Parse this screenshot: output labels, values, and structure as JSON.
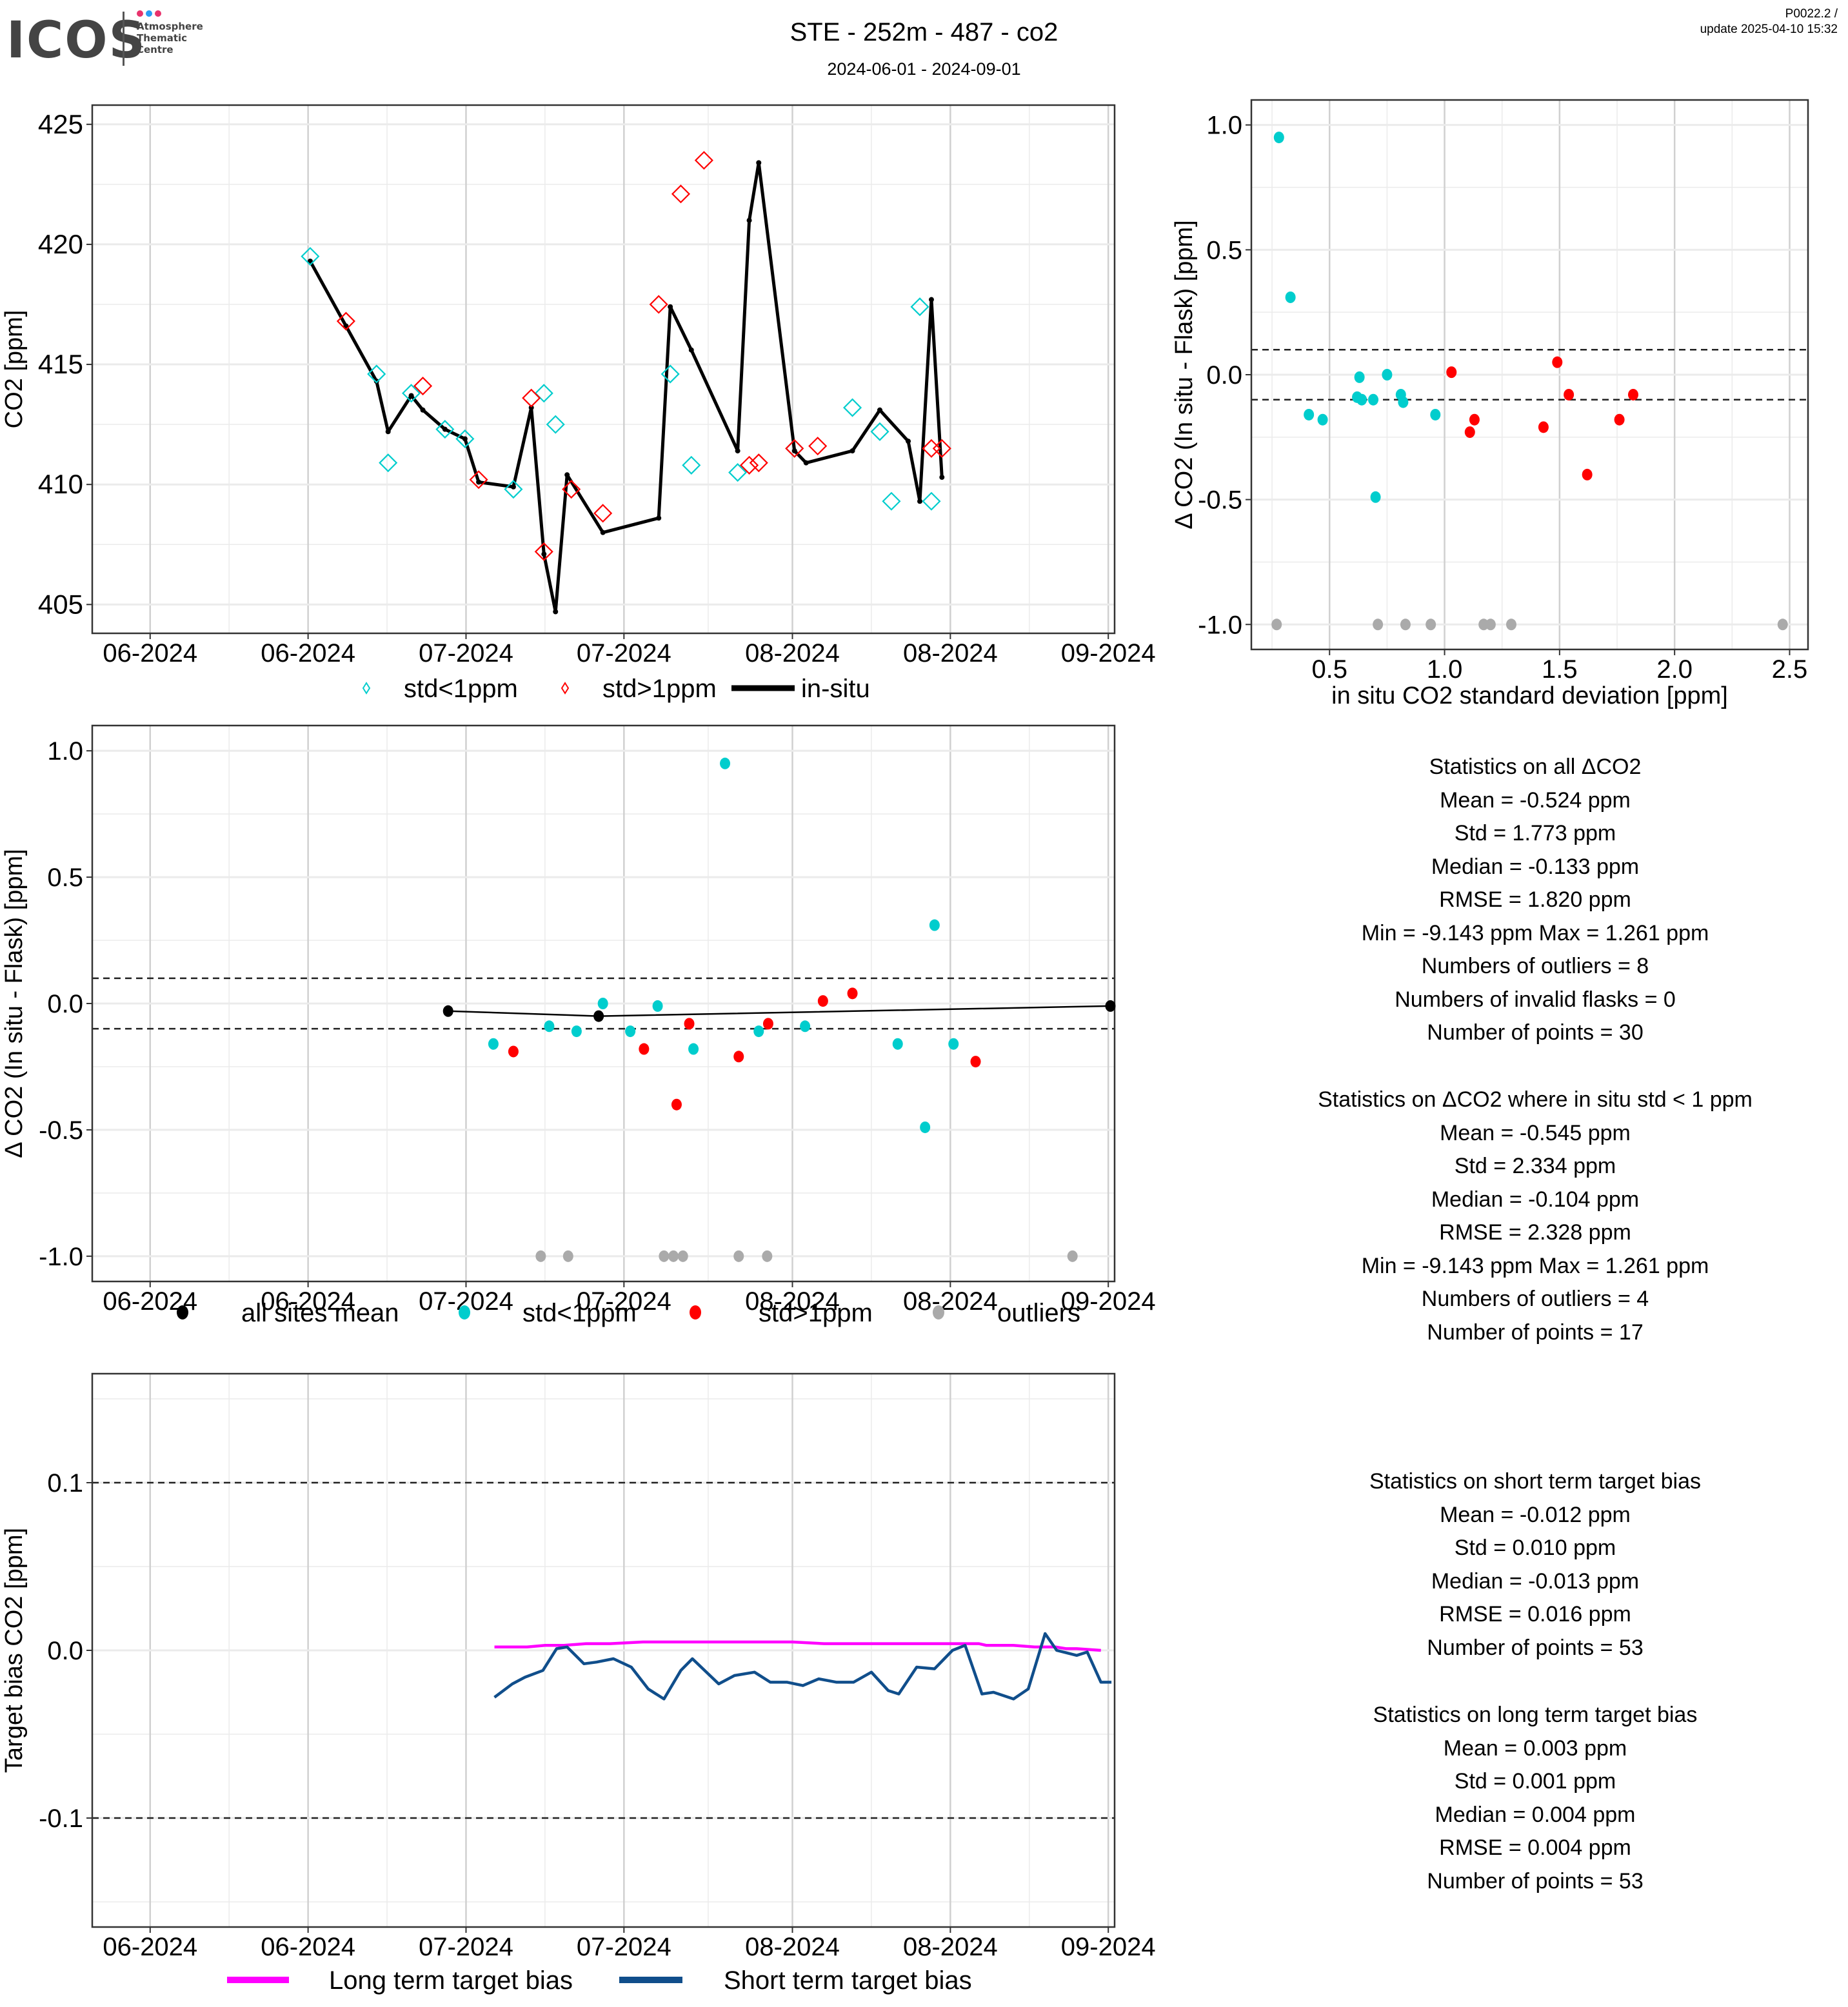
{
  "header": {
    "logo": "ICOS",
    "logo_sub": [
      "Atmosphere",
      "Thematic",
      "Centre"
    ],
    "logo_dot_colors": [
      "#e8336d",
      "#2a9df4",
      "#e8336d"
    ],
    "title": "STE - 252m - 487 - co2",
    "date_range": "2024-06-01 - 2024-09-01",
    "version": "P0022.2 /",
    "update": "update  2025-04-10 15:32"
  },
  "colors": {
    "std_lt_1": "#00CDCD",
    "std_gt_1": "#FF0000",
    "outlier": "#AAAAAA",
    "mean": "#000000",
    "long_term": "#FF00FF",
    "short_term": "#104E8B"
  },
  "x_ticks": {
    "days_since_2024_06_01": [
      1,
      16,
      31,
      46,
      62,
      77,
      92
    ],
    "labels": [
      "06-2024",
      "06-2024",
      "07-2024",
      "07-2024",
      "08-2024",
      "08-2024",
      "09-2024"
    ]
  },
  "chart_data": [
    {
      "id": "co2-timeseries",
      "type": "line",
      "xlabel": "",
      "ylabel": "CO2 [ppm]",
      "x_unit": "days since 2024-06-01",
      "xlim": [
        -4.5,
        92.6
      ],
      "ylim": [
        403.8,
        425.8
      ],
      "yticks": [
        405,
        410,
        415,
        420,
        425
      ],
      "grid": true,
      "legend_position": "bottom",
      "legend": [
        {
          "label": "std<1ppm",
          "symbol": "diamond-open",
          "color": "#00CDCD"
        },
        {
          "label": "std>1ppm",
          "symbol": "diamond-open",
          "color": "#FF0000"
        },
        {
          "label": "in-situ",
          "symbol": "line",
          "color": "#000000"
        }
      ],
      "insitu": {
        "x": [
          16.2,
          19.6,
          22.5,
          23.6,
          25.8,
          26.9,
          29.0,
          30.9,
          32.2,
          35.5,
          37.2,
          38.4,
          39.5,
          40.6,
          44.0,
          49.3,
          50.4,
          52.4,
          56.8,
          57.9,
          58.8,
          62.2,
          63.3,
          67.7,
          70.3,
          73.0,
          74.1,
          75.2,
          76.2
        ],
        "y": [
          419.3,
          416.6,
          414.3,
          412.2,
          413.7,
          413.1,
          412.3,
          411.9,
          410.1,
          409.9,
          413.2,
          407.1,
          404.7,
          410.4,
          408.0,
          408.6,
          417.4,
          415.6,
          411.4,
          421.0,
          423.4,
          411.4,
          410.9,
          411.4,
          413.1,
          411.8,
          409.3,
          417.7,
          410.3
        ]
      },
      "flask_std_lt_1": {
        "x": [
          16.2,
          22.5,
          23.6,
          25.8,
          29.0,
          30.9,
          35.5,
          38.4,
          39.5,
          50.4,
          52.4,
          56.8,
          62.2,
          67.7,
          70.3,
          71.4,
          74.1,
          75.2
        ],
        "y": [
          419.5,
          414.6,
          410.9,
          413.8,
          412.3,
          411.9,
          409.8,
          413.8,
          412.5,
          414.6,
          410.8,
          410.5,
          411.5,
          413.2,
          412.2,
          409.3,
          417.4,
          409.3
        ]
      },
      "flask_std_gt_1": {
        "x": [
          19.6,
          26.9,
          32.2,
          37.2,
          38.4,
          41.0,
          44.0,
          49.3,
          51.4,
          53.6,
          57.9,
          58.8,
          62.2,
          64.4,
          75.2,
          76.2
        ],
        "y": [
          416.8,
          414.1,
          410.2,
          413.6,
          407.2,
          409.8,
          408.8,
          417.5,
          422.1,
          423.5,
          410.8,
          410.9,
          411.5,
          411.6,
          411.5,
          411.5
        ]
      }
    },
    {
      "id": "delta-vs-std",
      "type": "scatter",
      "xlabel": "in situ CO2 standard deviation [ppm]",
      "ylabel": "Δ CO2 (In situ - Flask) [ppm]",
      "xlim": [
        0.16,
        2.58
      ],
      "ylim": [
        -1.1,
        1.1
      ],
      "xticks": [
        0.5,
        1.0,
        1.5,
        2.0,
        2.5
      ],
      "yticks": [
        -1.0,
        -0.5,
        0.0,
        0.5,
        1.0
      ],
      "ytick_labels": [
        "-1.0",
        "-0.5",
        "0.0",
        "0.5",
        "1.0"
      ],
      "xtick_labels": [
        "0.5",
        "1.0",
        "1.5",
        "2.0",
        "2.5"
      ],
      "hlines": [
        0.1,
        -0.1
      ],
      "grid": true,
      "series": [
        {
          "name": "std<1ppm",
          "color": "#00CDCD",
          "x": [
            0.28,
            0.33,
            0.41,
            0.47,
            0.62,
            0.63,
            0.64,
            0.69,
            0.7,
            0.75,
            0.81,
            0.82,
            0.96
          ],
          "y": [
            0.95,
            0.31,
            -0.16,
            -0.18,
            -0.09,
            -0.01,
            -0.1,
            -0.1,
            -0.49,
            0.0,
            -0.08,
            -0.11,
            -0.16
          ]
        },
        {
          "name": "std>1ppm",
          "color": "#FF0000",
          "x": [
            1.03,
            1.11,
            1.13,
            1.43,
            1.49,
            1.54,
            1.62,
            1.76,
            1.82
          ],
          "y": [
            0.01,
            -0.23,
            -0.18,
            -0.21,
            0.05,
            -0.08,
            -0.4,
            -0.18,
            -0.08
          ]
        },
        {
          "name": "outliers",
          "color": "#AAAAAA",
          "x": [
            0.27,
            0.71,
            0.83,
            0.94,
            1.17,
            1.2,
            1.29,
            2.47
          ],
          "y": [
            -1.0,
            -1.0,
            -1.0,
            -1.0,
            -1.0,
            -1.0,
            -1.0,
            -1.0
          ]
        }
      ]
    },
    {
      "id": "delta-timeseries",
      "type": "scatter",
      "xlabel": "",
      "ylabel": "Δ CO2 (In situ - Flask) [ppm]",
      "x_unit": "days since 2024-06-01",
      "xlim": [
        -4.5,
        92.6
      ],
      "ylim": [
        -1.1,
        1.1
      ],
      "yticks": [
        -1.0,
        -0.5,
        0.0,
        0.5,
        1.0
      ],
      "ytick_labels": [
        "-1.0",
        "-0.5",
        "0.0",
        "0.5",
        "1.0"
      ],
      "hlines": [
        0.1,
        -0.1
      ],
      "grid": true,
      "legend_position": "bottom",
      "legend": [
        {
          "label": "all sites mean",
          "color": "#000000"
        },
        {
          "label": "std<1ppm",
          "color": "#00CDCD"
        },
        {
          "label": "std>1ppm",
          "color": "#FF0000"
        },
        {
          "label": "outliers",
          "color": "#AAAAAA"
        }
      ],
      "series": [
        {
          "name": "all sites mean",
          "color": "#000000",
          "line": true,
          "x": [
            29.3,
            43.6,
            92.2
          ],
          "y": [
            -0.03,
            -0.05,
            -0.01
          ]
        },
        {
          "name": "std<1ppm",
          "color": "#00CDCD",
          "x": [
            33.6,
            38.9,
            41.5,
            44.0,
            46.6,
            49.2,
            52.6,
            55.6,
            58.8,
            63.2,
            72.0,
            74.6,
            75.5,
            77.3
          ],
          "y": [
            -0.16,
            -0.09,
            -0.11,
            0.0,
            -0.11,
            -0.01,
            -0.18,
            0.95,
            -0.11,
            -0.09,
            -0.16,
            -0.49,
            0.31,
            -0.16
          ]
        },
        {
          "name": "std>1ppm",
          "color": "#FF0000",
          "x": [
            35.5,
            47.9,
            51.0,
            52.2,
            56.9,
            59.7,
            64.9,
            67.7,
            79.4
          ],
          "y": [
            -0.19,
            -0.18,
            -0.4,
            -0.08,
            -0.21,
            -0.08,
            0.01,
            0.04,
            -0.23
          ]
        },
        {
          "name": "outliers",
          "color": "#AAAAAA",
          "x": [
            38.1,
            40.7,
            49.8,
            50.7,
            51.6,
            56.9,
            59.6,
            88.6
          ],
          "y": [
            -1.0,
            -1.0,
            -1.0,
            -1.0,
            -1.0,
            -1.0,
            -1.0,
            -1.0
          ]
        }
      ]
    },
    {
      "id": "target-bias",
      "type": "line",
      "xlabel": "",
      "ylabel": "Target bias CO2 [ppm]",
      "x_unit": "days since 2024-06-01",
      "xlim": [
        -4.5,
        92.6
      ],
      "ylim": [
        -0.165,
        0.165
      ],
      "yticks": [
        -0.1,
        0.0,
        0.1
      ],
      "ytick_labels": [
        "-0.1",
        "0.0",
        "0.1"
      ],
      "hlines": [
        0.1,
        -0.1
      ],
      "grid": true,
      "legend_position": "bottom",
      "legend": [
        {
          "label": "Long term target bias",
          "color": "#FF00FF"
        },
        {
          "label": "Short term target bias",
          "color": "#104E8B"
        }
      ],
      "series": [
        {
          "name": "Long term target bias",
          "color": "#FF00FF",
          "x": [
            33.7,
            35.4,
            36.8,
            38.5,
            40.3,
            42.4,
            44.7,
            47.8,
            52.3,
            57.0,
            62.0,
            65.0,
            70.0,
            71.5,
            73.0,
            74.5,
            76.2,
            77.5,
            78.8,
            79.7,
            80.4,
            83.0,
            85.0,
            87.0,
            88.0,
            89.0,
            91.3
          ],
          "y": [
            0.002,
            0.002,
            0.002,
            0.003,
            0.003,
            0.004,
            0.004,
            0.005,
            0.005,
            0.005,
            0.005,
            0.004,
            0.004,
            0.004,
            0.004,
            0.004,
            0.004,
            0.004,
            0.004,
            0.004,
            0.003,
            0.003,
            0.002,
            0.002,
            0.001,
            0.001,
            0.0
          ]
        },
        {
          "name": "Short term target bias",
          "color": "#104E8B",
          "x": [
            33.7,
            35.4,
            36.6,
            38.3,
            39.6,
            40.6,
            42.2,
            43.4,
            45.0,
            46.7,
            48.3,
            49.8,
            51.4,
            52.5,
            55.0,
            56.5,
            58.4,
            59.9,
            61.5,
            63.0,
            64.5,
            66.2,
            67.8,
            69.5,
            71.1,
            72.1,
            73.8,
            75.5,
            77.2,
            78.4,
            80.0,
            81.1,
            83.0,
            84.4,
            86.0,
            87.1,
            89.0,
            90.0,
            91.3,
            92.3,
            62.5,
            65.4,
            70.4,
            74.6,
            76.8,
            79.1,
            82.3,
            85.1,
            86.7,
            88.2,
            89.6,
            90.6,
            91.8
          ],
          "y": [
            -0.028,
            -0.02,
            -0.016,
            -0.012,
            0.001,
            0.002,
            -0.008,
            -0.007,
            -0.005,
            -0.01,
            -0.023,
            -0.029,
            -0.012,
            -0.005,
            -0.02,
            -0.015,
            -0.013,
            -0.019,
            -0.019,
            -0.021,
            -0.017,
            -0.019,
            -0.019,
            -0.013,
            -0.024,
            -0.026,
            -0.01,
            -0.011,
            0.0,
            0.003,
            -0.026,
            -0.025,
            -0.029,
            -0.023,
            0.01,
            0.0,
            -0.003,
            -0.001,
            -0.019,
            -0.019,
            0,
            0,
            0,
            0,
            0,
            0,
            0,
            0,
            0,
            0,
            0,
            0,
            0
          ]
        }
      ]
    }
  ],
  "stats": {
    "all": [
      "Statistics on all ΔCO2",
      "Mean =  -0.524 ppm",
      "Std =  1.773 ppm",
      "Median =  -0.133 ppm",
      "RMSE =  1.820 ppm",
      "Min =  -9.143 ppm Max =  1.261 ppm",
      "Numbers of outliers =  8",
      "Numbers of invalid flasks =  0",
      "Number of points =  30"
    ],
    "std_lt_1": [
      "Statistics on ΔCO2 where in situ std < 1 ppm",
      "Mean =  -0.545 ppm",
      "Std =  2.334 ppm",
      "Median =  -0.104 ppm",
      "RMSE =  2.328 ppm",
      "Min =  -9.143 ppm Max =  1.261 ppm",
      "Numbers of outliers =  4",
      "Number of points =  17"
    ],
    "short_term": [
      "Statistics on short term target bias",
      "Mean =  -0.012 ppm",
      "Std =  0.010 ppm",
      "Median =  -0.013 ppm",
      "RMSE =  0.016 ppm",
      "Number of points =  53"
    ],
    "long_term": [
      "Statistics on long term target bias",
      "Mean =  0.003 ppm",
      "Std =  0.001 ppm",
      "Median =  0.004 ppm",
      "RMSE =  0.004 ppm",
      "Number of points =  53"
    ]
  }
}
